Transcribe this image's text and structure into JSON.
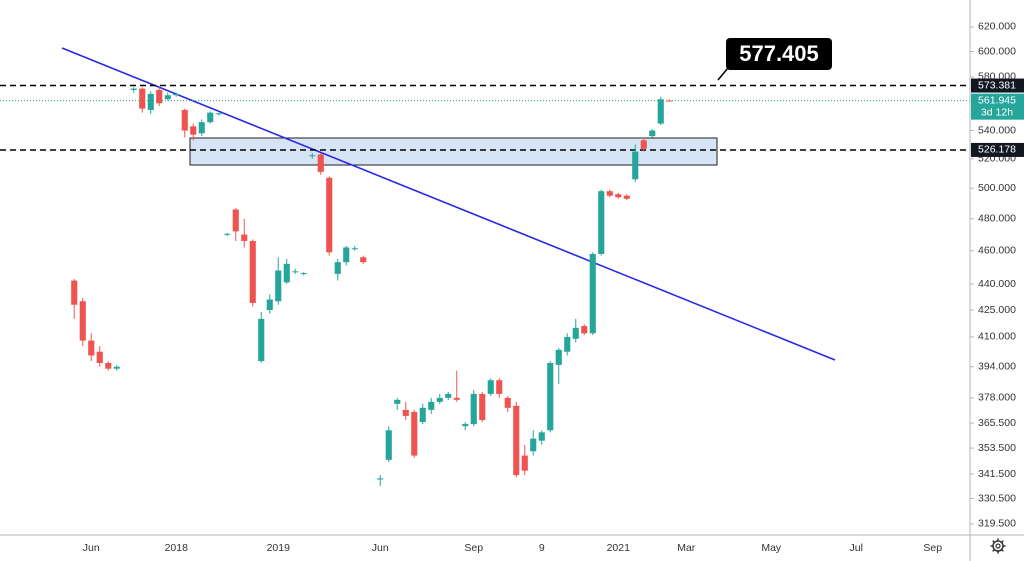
{
  "chart_data": {
    "type": "candlestick",
    "log_scale": true,
    "up_color": "#26a69a",
    "down_color": "#ef5350",
    "ylim": [
      314.8,
      642.7
    ],
    "yticks": [
      {
        "value": 620,
        "label": "620.000"
      },
      {
        "value": 600,
        "label": "600.000"
      },
      {
        "value": 580,
        "label": "580.000"
      },
      {
        "value": 540,
        "label": "540.000"
      },
      {
        "value": 520,
        "label": "520.000"
      },
      {
        "value": 500,
        "label": "500.000"
      },
      {
        "value": 480,
        "label": "480.000"
      },
      {
        "value": 460,
        "label": "460.000"
      },
      {
        "value": 440,
        "label": "440.000"
      },
      {
        "value": 425,
        "label": "425.000"
      },
      {
        "value": 410,
        "label": "410.000"
      },
      {
        "value": 394,
        "label": "394.000"
      },
      {
        "value": 378,
        "label": "378.000"
      },
      {
        "value": 365.5,
        "label": "365.500"
      },
      {
        "value": 353.5,
        "label": "353.500"
      },
      {
        "value": 341.5,
        "label": "341.500"
      },
      {
        "value": 330.5,
        "label": "330.500"
      },
      {
        "value": 319.5,
        "label": "319.500"
      }
    ],
    "categories": [
      null,
      null,
      null,
      null,
      null,
      null,
      null,
      null,
      null,
      null,
      "Jun",
      null,
      null,
      null,
      null,
      null,
      null,
      null,
      null,
      null,
      "2018",
      null,
      null,
      null,
      null,
      null,
      null,
      null,
      null,
      null,
      null,
      null,
      "2019",
      null,
      null,
      null,
      null,
      null,
      null,
      null,
      null,
      null,
      null,
      null,
      "Jun",
      null,
      null,
      null,
      null,
      null,
      null,
      null,
      null,
      null,
      null,
      "Sep",
      null,
      null,
      null,
      null,
      null,
      null,
      null,
      "9",
      null,
      null,
      null,
      null,
      null,
      null,
      null,
      null,
      "2021",
      null,
      null,
      null,
      null,
      null,
      null,
      null,
      "Mar",
      null,
      null,
      null,
      null,
      null,
      null,
      null,
      null,
      null,
      "May",
      null,
      null,
      null,
      null,
      null,
      null,
      null,
      null,
      null,
      "Jul",
      null,
      null,
      null,
      null,
      null,
      null,
      null,
      null,
      "Sep",
      null,
      null,
      null
    ],
    "open": [
      null,
      null,
      null,
      null,
      null,
      null,
      null,
      null,
      442,
      430,
      408,
      402,
      396,
      393,
      null,
      570,
      571,
      555,
      570,
      563,
      566,
      555,
      543,
      538,
      546,
      552,
      470,
      486,
      470,
      466,
      397,
      425,
      430,
      441,
      447,
      446,
      522,
      523,
      507,
      446,
      453,
      461,
      456,
      null,
      339,
      348,
      375,
      372,
      371,
      366,
      372,
      376,
      378,
      378,
      364,
      365,
      380,
      380,
      387,
      378,
      374,
      350,
      352,
      357,
      362,
      395,
      402,
      409,
      416,
      412,
      458,
      498,
      496,
      495,
      506,
      533,
      536,
      545,
      562,
      null,
      null,
      null,
      null,
      null,
      null,
      null,
      null,
      null,
      null,
      null,
      null,
      null,
      null,
      null,
      null,
      null,
      null,
      null,
      null,
      null,
      null,
      null,
      null,
      null,
      null,
      null,
      null,
      null,
      null,
      null,
      null,
      null,
      null
    ],
    "high": [
      null,
      null,
      null,
      null,
      null,
      null,
      null,
      null,
      443,
      432,
      412,
      405,
      397,
      395,
      null,
      572,
      572,
      569,
      572,
      568,
      568,
      556,
      545,
      548,
      554,
      553,
      471,
      487,
      480,
      467,
      424,
      434,
      456,
      455,
      449,
      447,
      524,
      524,
      508,
      455,
      463,
      463,
      457,
      null,
      341,
      364,
      378,
      376,
      372,
      375,
      378,
      380,
      381,
      392,
      366,
      382,
      381,
      388,
      388,
      379,
      376,
      355,
      362,
      362,
      397,
      404,
      412,
      420,
      417,
      459,
      499,
      499,
      497,
      496,
      530,
      535,
      541,
      565,
      563,
      null,
      null,
      null,
      null,
      null,
      null,
      null,
      null,
      null,
      null,
      null,
      null,
      null,
      null,
      null,
      null,
      null,
      null,
      null,
      null,
      null,
      null,
      null,
      null,
      null,
      null,
      null,
      null,
      null,
      null,
      null,
      null,
      null,
      null
    ],
    "low": [
      null,
      null,
      null,
      null,
      null,
      null,
      null,
      null,
      420,
      405,
      397,
      394,
      392,
      392,
      null,
      568,
      553,
      552,
      558,
      562,
      565,
      535,
      533,
      536,
      545,
      551,
      469,
      466,
      462,
      427,
      396,
      423,
      428,
      440,
      446,
      445,
      520,
      509,
      457,
      442,
      451,
      460,
      452,
      null,
      336,
      347,
      372,
      367,
      349,
      365,
      370,
      375,
      377,
      376,
      362,
      364,
      366,
      379,
      378,
      371,
      340,
      341,
      350,
      355,
      361,
      385,
      400,
      407,
      411,
      411,
      457,
      494,
      493,
      492,
      504,
      525,
      535,
      544,
      561.5,
      null,
      null,
      null,
      null,
      null,
      null,
      null,
      null,
      null,
      null,
      null,
      null,
      null,
      null,
      null,
      null,
      null,
      null,
      null,
      null,
      null,
      null,
      null,
      null,
      null,
      null,
      null,
      null,
      null,
      null,
      null,
      null,
      null,
      null
    ],
    "close": [
      null,
      null,
      null,
      null,
      null,
      null,
      null,
      null,
      428,
      408,
      400,
      396,
      393,
      394,
      null,
      571,
      556,
      567,
      560,
      566,
      567,
      540,
      537,
      546,
      553,
      552.5,
      470.5,
      472,
      466,
      429,
      420,
      431,
      448,
      452,
      447.5,
      446.5,
      522.5,
      511,
      459,
      453,
      462,
      461.5,
      453,
      null,
      339.5,
      362,
      377,
      369,
      350,
      373,
      376,
      378,
      380,
      377,
      365,
      380,
      367,
      387,
      380,
      373,
      341,
      343,
      358,
      361,
      396,
      403,
      410,
      415,
      412,
      458,
      498,
      495,
      494,
      493,
      525,
      527,
      540,
      563,
      561.945,
      null,
      null,
      null,
      null,
      null,
      null,
      null,
      null,
      null,
      null,
      null,
      null,
      null,
      null,
      null,
      null,
      null,
      null,
      null,
      null,
      null,
      null,
      null,
      null,
      null,
      null,
      null,
      null,
      null,
      null,
      null,
      null,
      null,
      null
    ],
    "levels": [
      573.381,
      526.178
    ],
    "last_price": 561.945,
    "countdown": "3d 12h",
    "callout": 577.405
  }
}
